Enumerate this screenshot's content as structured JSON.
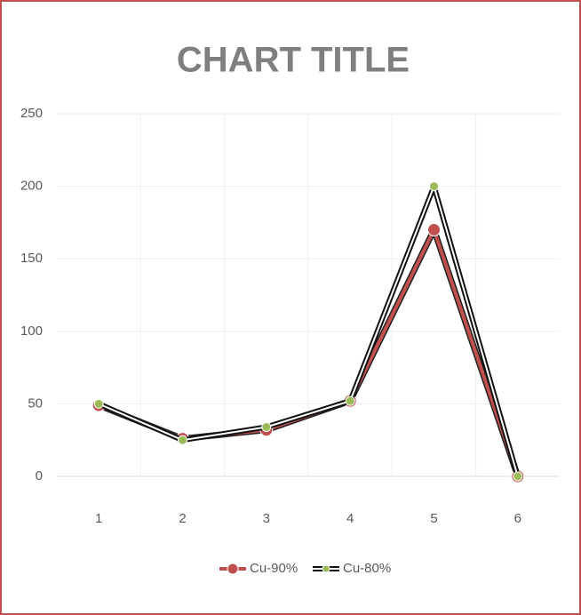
{
  "chart_data": {
    "type": "line",
    "title": "CHART TITLE",
    "categories": [
      "1",
      "2",
      "3",
      "4",
      "5",
      "6"
    ],
    "series": [
      {
        "name": "Cu-90%",
        "color": "#c0504d",
        "values": [
          49,
          26,
          32,
          52,
          170,
          0
        ]
      },
      {
        "name": "Cu-80%",
        "color": "#9bbb59",
        "values": [
          50,
          25,
          34,
          52,
          200,
          0
        ]
      }
    ],
    "ylim": [
      0,
      250
    ],
    "yticks": [
      0,
      50,
      100,
      150,
      200,
      250
    ],
    "grid": true,
    "legend": "bottom"
  }
}
